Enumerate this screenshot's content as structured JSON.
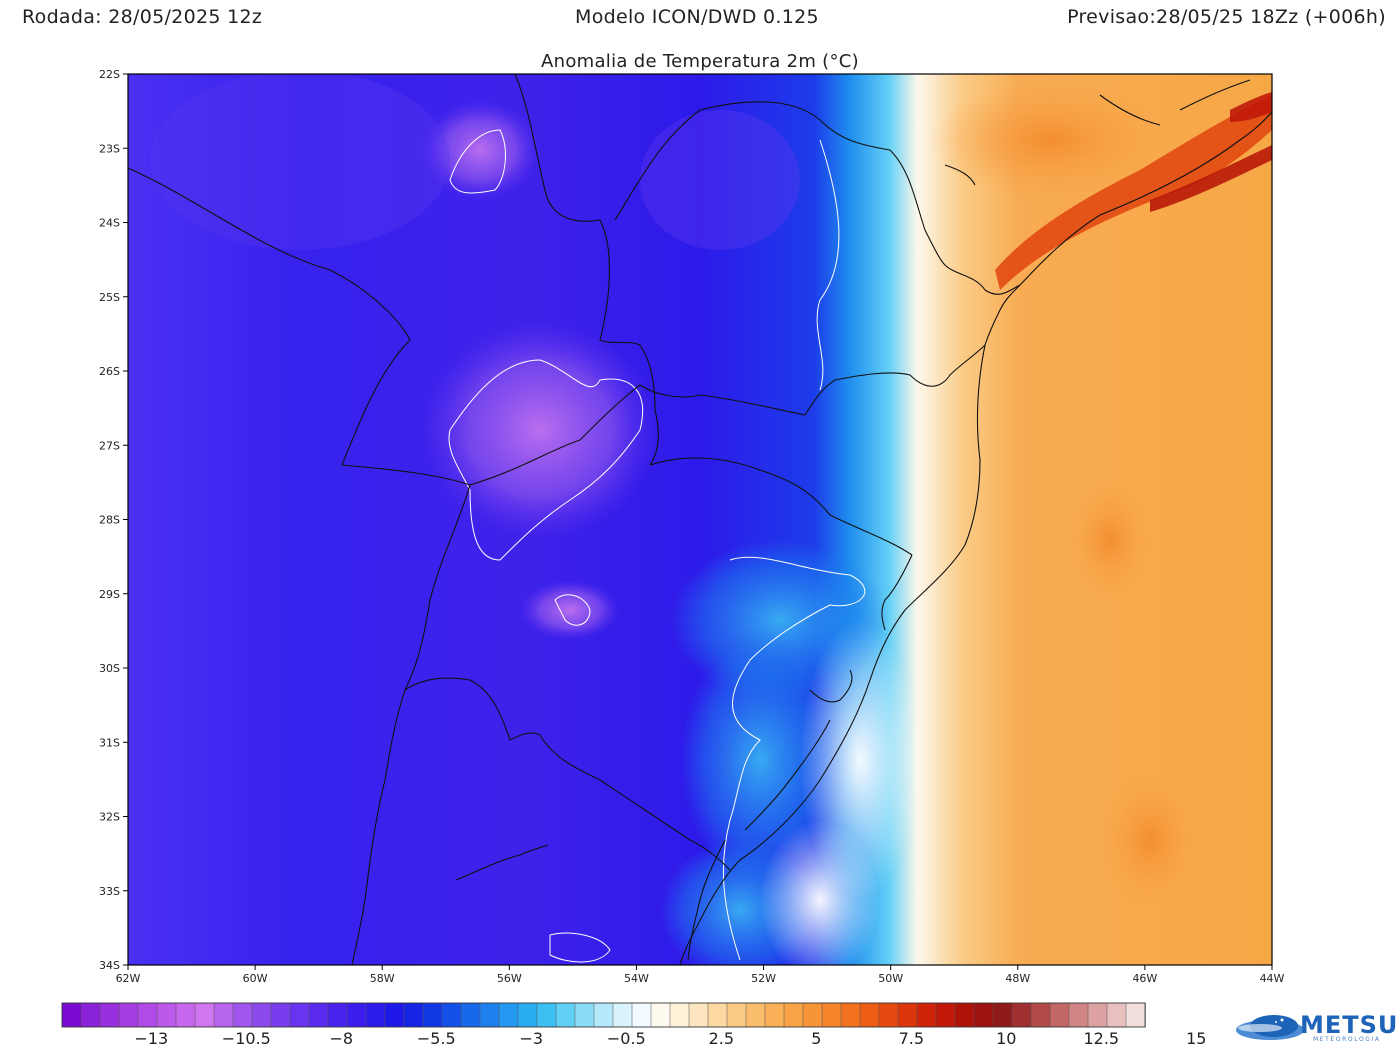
{
  "header": {
    "run": "Rodada: 28/05/2025 12z",
    "model": "Modelo ICON/DWD 0.125",
    "forecast": "Previsao:28/05/25 18Zz (+006h)"
  },
  "map": {
    "title": "Anomalia de Temperatura 2m (°C)",
    "lat_labels": [
      "22S",
      "23S",
      "24S",
      "25S",
      "26S",
      "27S",
      "28S",
      "29S",
      "30S",
      "31S",
      "32S",
      "33S",
      "34S"
    ],
    "lon_labels": [
      "62W",
      "60W",
      "58W",
      "56W",
      "54W",
      "52W",
      "50W",
      "48W",
      "46W",
      "44W"
    ],
    "extent": {
      "lon_min": -62,
      "lon_max": -44,
      "lat_min": -34,
      "lat_max": -22
    }
  },
  "colorbar": {
    "labels": [
      "−13",
      "−10.5",
      "−8",
      "−5.5",
      "−3",
      "−0.5",
      "2.5",
      "5",
      "7.5",
      "10",
      "12.5",
      "15"
    ],
    "colors": [
      "#7a0ad0",
      "#8a22d8",
      "#9830dd",
      "#a63de2",
      "#b14ae6",
      "#bc58ea",
      "#c767ee",
      "#d176f1",
      "#b765ee",
      "#a056ec",
      "#8c49eb",
      "#7a3ded",
      "#6a33ef",
      "#5a2aef",
      "#4a22ee",
      "#3b1ded",
      "#2c1aeb",
      "#1f18ea",
      "#1624e6",
      "#1238e6",
      "#1450e8",
      "#1868ea",
      "#1d80ee",
      "#2298f0",
      "#29adf2",
      "#3cc0f4",
      "#62cff6",
      "#8cdcf8",
      "#b4e8fa",
      "#d8f3fc",
      "#f2fbff",
      "#fffaf0",
      "#fff0d8",
      "#fde5bf",
      "#fcd8a2",
      "#fbcb86",
      "#fabd6c",
      "#f9b057",
      "#f8a446",
      "#f79438",
      "#f5842a",
      "#f2721f",
      "#ed5d16",
      "#e64a10",
      "#dc360c",
      "#cf240a",
      "#c01809",
      "#ae1208",
      "#9c1210",
      "#8e1a1a",
      "#a03030",
      "#b24a4a",
      "#c26666",
      "#d08484",
      "#dca2a2",
      "#e8c0c0",
      "#f3dede"
    ]
  },
  "logo": {
    "name": "METSUL",
    "sub": "METEOROLOGIA"
  }
}
